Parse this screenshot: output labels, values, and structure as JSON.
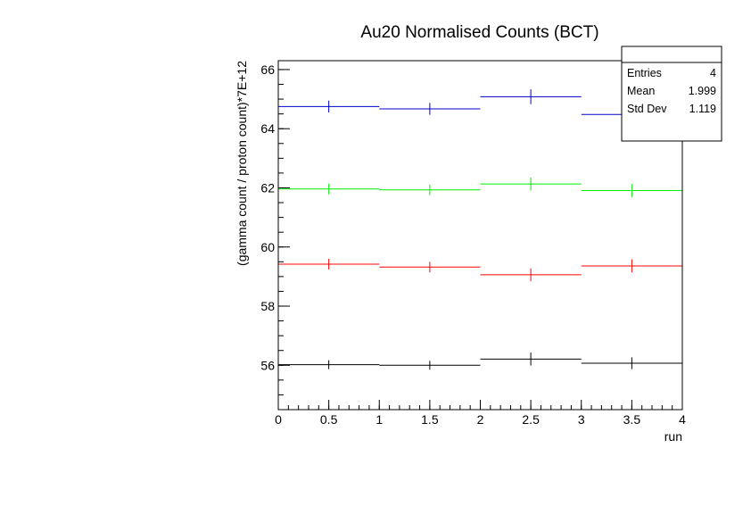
{
  "chart_data": {
    "type": "line",
    "title": "Au20 Normalised Counts (BCT)",
    "xlabel": "run",
    "ylabel": "(gamma count / proton count)*7E+12",
    "xlim": [
      0,
      4
    ],
    "ylim": [
      54.5,
      66.3
    ],
    "x_ticks": [
      "0",
      "0.5",
      "1",
      "1.5",
      "2",
      "2.5",
      "3",
      "3.5",
      "4"
    ],
    "y_ticks": [
      "56",
      "58",
      "60",
      "62",
      "64",
      "66"
    ],
    "bin_edges": [
      0,
      1,
      2,
      3,
      4
    ],
    "bin_centers": [
      0.5,
      1.5,
      2.5,
      3.5
    ],
    "series": [
      {
        "color": "#0000cc",
        "values": [
          64.75,
          64.67,
          65.08,
          64.48
        ],
        "errors": [
          0.2,
          0.2,
          0.25,
          0.2
        ]
      },
      {
        "color": "#00ee00",
        "values": [
          61.96,
          61.93,
          62.13,
          61.91
        ],
        "errors": [
          0.18,
          0.18,
          0.22,
          0.22
        ]
      },
      {
        "color": "#ff0000",
        "values": [
          59.42,
          59.32,
          59.06,
          59.36
        ],
        "errors": [
          0.18,
          0.18,
          0.22,
          0.22
        ]
      },
      {
        "color": "#000000",
        "values": [
          56.02,
          56.0,
          56.21,
          56.07
        ],
        "errors": [
          0.15,
          0.15,
          0.22,
          0.2
        ]
      }
    ],
    "grid": false,
    "stats_box": {
      "entries_label": "Entries",
      "entries_value": "4",
      "mean_label": "Mean",
      "mean_value": "1.999",
      "std_label": "Std Dev",
      "std_value": "1.119"
    }
  }
}
